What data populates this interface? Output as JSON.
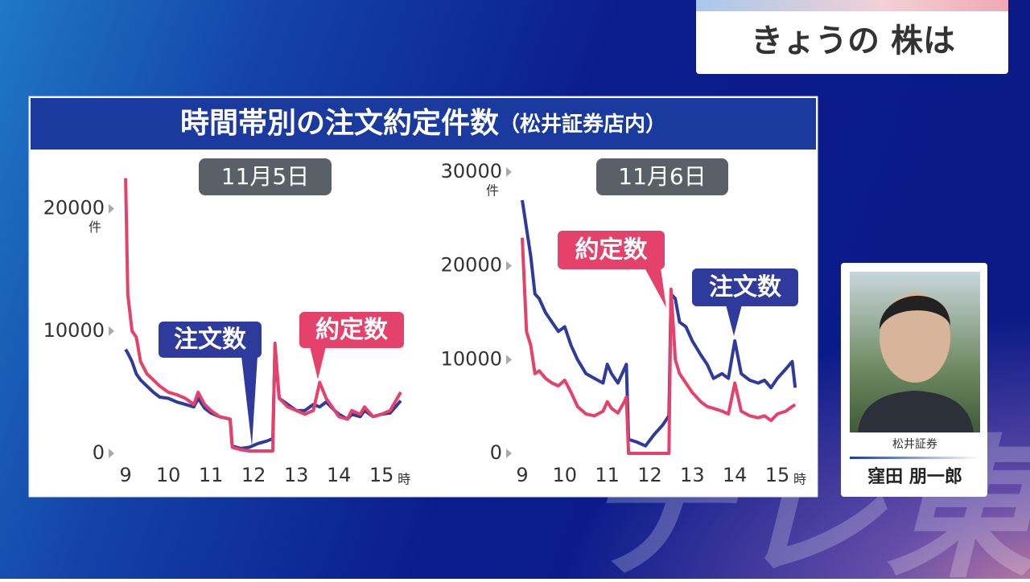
{
  "header": {
    "title": "きょうの 株は"
  },
  "panel": {
    "title": "時間帯別の注文約定件数",
    "subtitle": "（松井証券店内）"
  },
  "chart_data": [
    {
      "type": "line",
      "subtitle": "11月5日",
      "x_unit": "時",
      "y_unit": "件",
      "x": [
        9,
        9.05,
        9.15,
        9.25,
        9.35,
        9.5,
        9.65,
        9.8,
        10,
        10.2,
        10.4,
        10.6,
        10.7,
        10.85,
        11,
        11.2,
        11.45,
        11.5,
        11.7,
        11.9,
        12.1,
        12.3,
        12.45,
        12.5,
        12.6,
        12.8,
        13,
        13.2,
        13.4,
        13.55,
        13.7,
        13.9,
        14,
        14.2,
        14.3,
        14.5,
        14.6,
        14.8,
        15,
        15.2,
        15.45
      ],
      "xlim": [
        8.9,
        15.6
      ],
      "xticks": [
        9,
        10,
        11,
        12,
        13,
        14,
        15
      ],
      "ylim": [
        0,
        23000
      ],
      "yticks": [
        0,
        10000,
        20000
      ],
      "series": [
        {
          "name": "注文数",
          "color": "#2e3b9c",
          "values": [
            8500,
            8200,
            7500,
            6500,
            6000,
            5500,
            5000,
            4600,
            4500,
            4200,
            4000,
            3800,
            4500,
            3700,
            3300,
            3000,
            2800,
            600,
            400,
            500,
            800,
            1000,
            1200,
            8500,
            4500,
            4000,
            3500,
            3500,
            4000,
            3800,
            4200,
            3500,
            3200,
            2800,
            3200,
            3000,
            3500,
            3000,
            3200,
            3300,
            4300
          ]
        },
        {
          "name": "約定数",
          "color": "#e5426b",
          "values": [
            22500,
            13000,
            10000,
            9500,
            7500,
            6500,
            6000,
            5500,
            5000,
            4800,
            4500,
            4000,
            5000,
            4000,
            3500,
            3000,
            2800,
            500,
            300,
            200,
            200,
            200,
            200,
            9000,
            4500,
            3800,
            3500,
            3200,
            3500,
            5800,
            4500,
            3500,
            3000,
            2800,
            3500,
            3200,
            3800,
            3000,
            3200,
            3500,
            5000
          ]
        }
      ]
    },
    {
      "type": "line",
      "subtitle": "11月6日",
      "x_unit": "時",
      "y_unit": "件",
      "x": [
        9,
        9.1,
        9.2,
        9.3,
        9.4,
        9.55,
        9.7,
        9.85,
        10,
        10.15,
        10.3,
        10.5,
        10.7,
        10.9,
        11,
        11.1,
        11.25,
        11.4,
        11.45,
        11.5,
        11.7,
        11.9,
        12.1,
        12.3,
        12.45,
        12.5,
        12.6,
        12.7,
        12.85,
        13,
        13.2,
        13.35,
        13.5,
        13.7,
        13.85,
        14,
        14.15,
        14.35,
        14.55,
        14.7,
        14.85,
        15,
        15.2,
        15.35,
        15.42
      ],
      "xlim": [
        8.9,
        15.6
      ],
      "xticks": [
        9,
        10,
        11,
        12,
        13,
        14,
        15
      ],
      "ylim": [
        0,
        30000
      ],
      "yticks": [
        0,
        10000,
        20000,
        30000
      ],
      "series": [
        {
          "name": "注文数",
          "color": "#2e3b9c",
          "values": [
            27000,
            24000,
            21000,
            17000,
            16500,
            15000,
            14000,
            13000,
            13500,
            11500,
            10000,
            8500,
            8000,
            7500,
            9500,
            8500,
            7500,
            9000,
            9500,
            1500,
            1200,
            800,
            2000,
            3000,
            4000,
            17000,
            16500,
            14000,
            13500,
            12000,
            10500,
            9500,
            8000,
            8500,
            8000,
            12000,
            8500,
            7800,
            7500,
            7800,
            7000,
            8000,
            9000,
            9800,
            7000
          ]
        },
        {
          "name": "約定数",
          "color": "#e5426b",
          "values": [
            23000,
            13000,
            11500,
            8500,
            8800,
            8000,
            7500,
            7200,
            7800,
            6500,
            5000,
            4200,
            4000,
            4500,
            5500,
            4800,
            4300,
            5500,
            6000,
            0,
            0,
            0,
            0,
            0,
            0,
            17500,
            10000,
            8500,
            7500,
            6500,
            5500,
            5000,
            4800,
            4500,
            4200,
            7500,
            4500,
            4000,
            3800,
            4000,
            3500,
            4200,
            4500,
            5000,
            5200
          ]
        }
      ]
    }
  ],
  "guest": {
    "company": "松井証券",
    "name": "窪田 朋一郎"
  },
  "watermark": "テレ東"
}
